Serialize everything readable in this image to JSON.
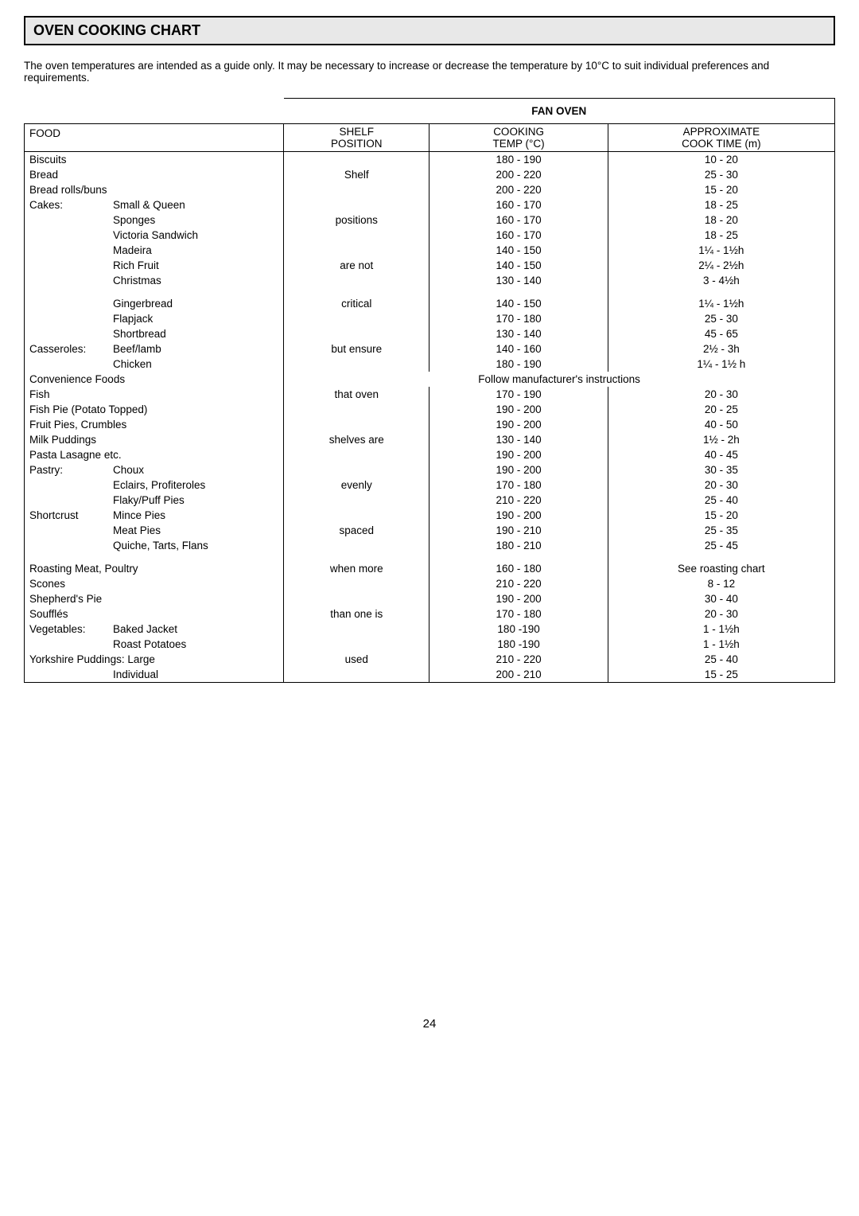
{
  "title": "OVEN COOKING CHART",
  "intro": "The oven temperatures are intended as a guide only.  It may be necessary to increase or decrease the temperature by 10°C to suit individual preferences and requirements.",
  "fanOvenLabel": "FAN OVEN",
  "headers": {
    "food": "FOOD",
    "shelf1": "SHELF",
    "shelf2": "POSITION",
    "cook1": "COOKING",
    "cook2": "TEMP (°C)",
    "approx1": "APPROXIMATE",
    "approx2": "COOK TIME (m)"
  },
  "shelfWords": [
    "Shelf",
    "positions",
    "are not",
    "critical",
    "but ensure",
    "that oven",
    "shelves are",
    "evenly",
    "spaced",
    "when more",
    "than one is",
    "used"
  ],
  "block1": [
    {
      "food": "Biscuits",
      "temp": "180 - 190",
      "time": "10 - 20"
    },
    {
      "food": "Bread",
      "temp": "200 - 220",
      "time": "25 - 30"
    },
    {
      "food": "Bread rolls/buns",
      "temp": "200 - 220",
      "time": "15 - 20"
    },
    {
      "label": "Cakes:",
      "sub": "Small & Queen",
      "temp": "160 - 170",
      "time": "18 - 25"
    },
    {
      "sub": "Sponges",
      "temp": "160 - 170",
      "time": "18 - 20"
    },
    {
      "sub": "Victoria Sandwich",
      "temp": "160 - 170",
      "time": "18 - 25"
    },
    {
      "sub": "Madeira",
      "temp": "140 - 150",
      "time": "1¼ - 1½h"
    },
    {
      "sub": "Rich Fruit",
      "temp": "140 - 150",
      "time": "2¼ - 2½h"
    },
    {
      "sub": "Christmas",
      "temp": "130 - 140",
      "time": "3 - 4½h"
    }
  ],
  "block1b": [
    {
      "sub": "Gingerbread",
      "temp": "140 - 150",
      "time": "1¼ - 1½h"
    },
    {
      "sub": "Flapjack",
      "temp": "170 - 180",
      "time": "25 - 30"
    },
    {
      "sub": "Shortbread",
      "temp": "130 - 140",
      "time": "45 - 65"
    },
    {
      "label": "Casseroles:",
      "sub": "Beef/lamb",
      "temp": "140 - 160",
      "time": "2½ - 3h"
    },
    {
      "sub": "Chicken",
      "temp": "180 - 190",
      "time": "1¼ - 1½ h"
    }
  ],
  "convenience": {
    "food": "Convenience Foods",
    "note": "Follow manufacturer's instructions"
  },
  "block2": [
    {
      "food": "Fish",
      "temp": "170 - 190",
      "time": "20 - 30"
    },
    {
      "food": "Fish Pie (Potato Topped)",
      "temp": "190 - 200",
      "time": "20 - 25"
    },
    {
      "food": "Fruit Pies, Crumbles",
      "temp": "190 - 200",
      "time": "40 - 50"
    },
    {
      "food": "Milk Puddings",
      "temp": "130 - 140",
      "time": "1½ - 2h"
    },
    {
      "food": "Pasta Lasagne etc.",
      "temp": "190 - 200",
      "time": "40 - 45"
    },
    {
      "label": "Pastry:",
      "sub": "Choux",
      "temp": "190 - 200",
      "time": "30 - 35"
    },
    {
      "sub": "Eclairs, Profiteroles",
      "temp": "170 - 180",
      "time": "20 - 30"
    },
    {
      "sub": "Flaky/Puff Pies",
      "temp": "210 - 220",
      "time": "25 - 40"
    },
    {
      "label": "Shortcrust",
      "sub": "Mince Pies",
      "temp": "190 - 200",
      "time": "15 - 20"
    },
    {
      "sub": "Meat Pies",
      "temp": "190 - 210",
      "time": "25 - 35"
    },
    {
      "sub": "Quiche, Tarts, Flans",
      "temp": "180 - 210",
      "time": "25 - 45"
    }
  ],
  "block3": [
    {
      "food": "Roasting Meat, Poultry",
      "temp": "160 - 180",
      "time": "See roasting chart"
    },
    {
      "food": "Scones",
      "temp": "210 - 220",
      "time": "8 - 12"
    },
    {
      "food": "Shepherd's Pie",
      "temp": "190 - 200",
      "time": "30 - 40"
    },
    {
      "food": "Soufflés",
      "temp": "170 - 180",
      "time": "20 - 30"
    },
    {
      "label": "Vegetables:",
      "sub": "Baked Jacket",
      "temp": "180 -190",
      "time": "1 - 1½h"
    },
    {
      "sub": "Roast Potatoes",
      "temp": "180 -190",
      "time": "1 - 1½h"
    },
    {
      "food": "Yorkshire Puddings: Large",
      "temp": "210 - 220",
      "time": "25 - 40"
    },
    {
      "sub": "Individual",
      "temp": "200 - 210",
      "time": "15 - 25"
    }
  ],
  "pageNumber": "24"
}
